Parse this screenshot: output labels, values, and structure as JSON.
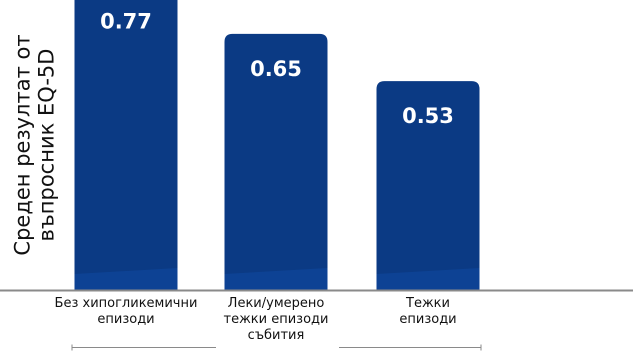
{
  "chart_data": {
    "type": "bar",
    "title": "",
    "ylabel_lines": [
      "Среден резултат от",
      "въпросник EQ-5D"
    ],
    "ylim": [
      0,
      0.9
    ],
    "categories": [
      {
        "lines": [
          "Без хипогликемични",
          "епизоди"
        ]
      },
      {
        "lines": [
          "Леки/умерено",
          "тежки епизоди",
          "събития"
        ]
      },
      {
        "lines": [
          "Тежки",
          "епизоди"
        ]
      }
    ],
    "values": [
      0.77,
      0.65,
      0.53
    ],
    "data_labels": [
      "0.77",
      "0.65",
      "0.53"
    ],
    "grid": false,
    "legend": "none",
    "colors": {
      "bar": "#0b3a84",
      "bar_shade": "#0d4496",
      "label": "#ffffff",
      "axis": "#8a8a8a",
      "bracket": "#8a8a8a",
      "text": "#111111"
    }
  }
}
